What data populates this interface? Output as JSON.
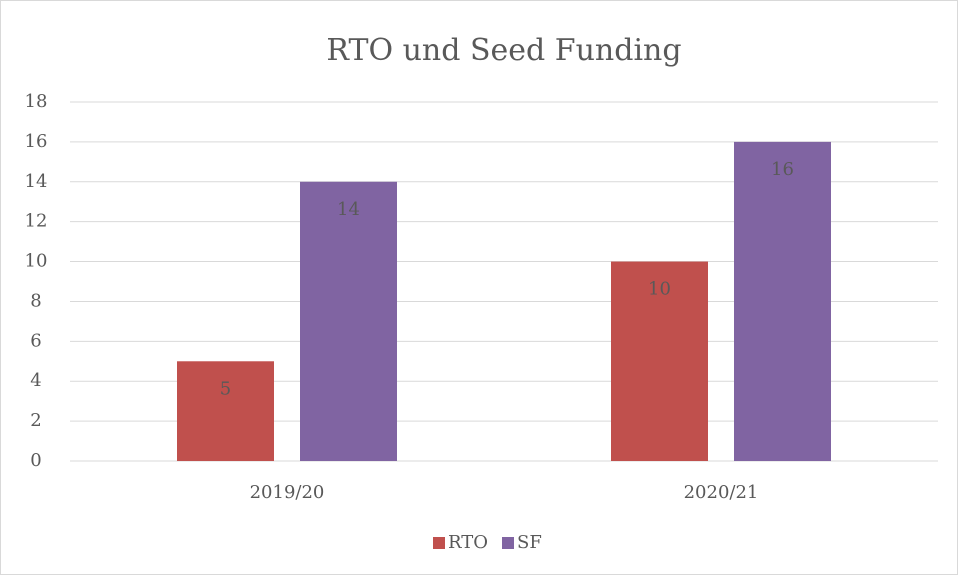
{
  "chart_data": {
    "type": "bar",
    "title": "RTO und Seed Funding",
    "categories": [
      "2019/20",
      "2020/21"
    ],
    "series": [
      {
        "name": "RTO",
        "color": "#c0504d",
        "values": [
          5,
          10
        ]
      },
      {
        "name": "SF",
        "color": "#8064a2",
        "values": [
          14,
          16
        ]
      }
    ],
    "ylim": [
      0,
      18
    ],
    "yticks": [
      0,
      2,
      4,
      6,
      8,
      10,
      12,
      14,
      16,
      18
    ],
    "grid": true,
    "data_labels": true,
    "legend": "bottom"
  }
}
